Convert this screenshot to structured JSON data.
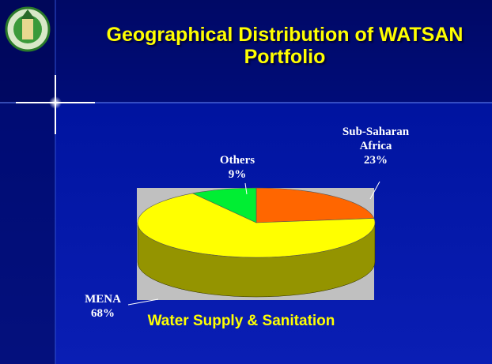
{
  "chart_data": {
    "type": "pie",
    "title": "Geographical Distribution of WATSAN Portfolio",
    "subtitle": "Water Supply & Sanitation",
    "categories": [
      "Sub-Saharan Africa",
      "MENA",
      "Others"
    ],
    "values": [
      23,
      68,
      9
    ],
    "value_labels": [
      "23%",
      "68%",
      "9%"
    ],
    "colors": [
      "#ff6600",
      "#ffff00",
      "#00ee33"
    ]
  }
}
